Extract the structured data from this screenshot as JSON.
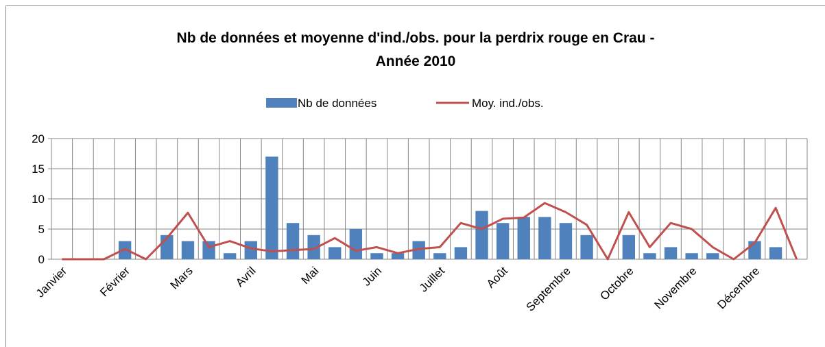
{
  "chart_data": {
    "type": "bar-line",
    "title": [
      "Nb de données et moyenne d'ind./obs. pour la perdrix rouge en Crau -",
      "Année 2010"
    ],
    "categories": [
      "Janvier",
      null,
      null,
      "Février",
      null,
      null,
      "Mars",
      null,
      null,
      "Avril",
      null,
      null,
      "Mai",
      null,
      null,
      "Juin",
      null,
      null,
      "Juillet",
      null,
      null,
      "Août",
      null,
      null,
      "Septembre",
      null,
      null,
      "Octobre",
      null,
      null,
      "Novembre",
      null,
      null,
      "Décembre",
      null,
      null
    ],
    "series": [
      {
        "name": "Nb de données",
        "type": "bar",
        "color": "#4f81bd",
        "values": [
          0,
          0,
          0,
          3,
          0,
          4,
          3,
          3,
          1,
          3,
          17,
          6,
          4,
          2,
          5,
          1,
          1,
          3,
          1,
          2,
          8,
          6,
          7,
          7,
          6,
          4,
          0,
          4,
          1,
          2,
          1,
          1,
          0,
          3,
          2,
          0
        ]
      },
      {
        "name": "Moy. ind./obs.",
        "type": "line",
        "color": "#c0504d",
        "values": [
          0,
          0,
          0,
          1.7,
          0,
          3.5,
          7.7,
          2,
          3,
          1.8,
          1.3,
          1.5,
          1.7,
          3.5,
          1.4,
          2,
          1,
          1.7,
          2,
          6,
          5,
          6.7,
          6.9,
          9.3,
          7.8,
          5.7,
          0,
          7.8,
          2,
          6,
          5,
          2,
          0,
          2.7,
          8.5,
          0
        ]
      }
    ],
    "ylim": [
      0,
      20
    ],
    "yticks": [
      0,
      5,
      10,
      15,
      20
    ],
    "grid": true,
    "legend": "top"
  }
}
